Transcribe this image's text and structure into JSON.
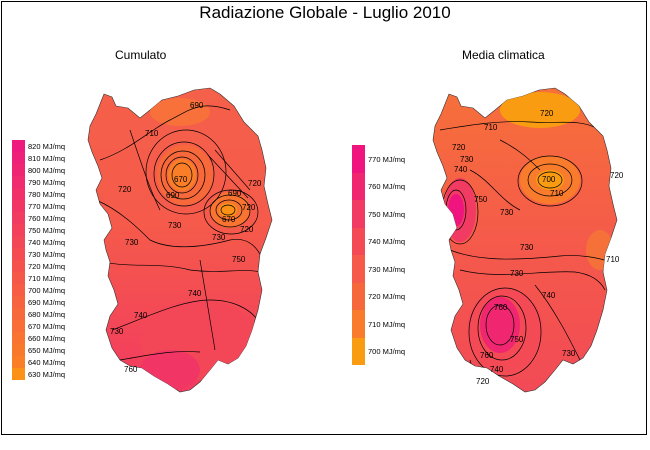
{
  "title": "Radiazione Globale - Luglio 2010",
  "maps": [
    {
      "id": "cumulato",
      "title": "Cumulato",
      "legend": [
        {
          "label": "820 MJ/mq",
          "color": "#ee1a7e"
        },
        {
          "label": "810 MJ/mq",
          "color": "#ef2079"
        },
        {
          "label": "800 MJ/mq",
          "color": "#ef2574"
        },
        {
          "label": "790 MJ/mq",
          "color": "#f02b6f"
        },
        {
          "label": "780 MJ/mq",
          "color": "#f1306a"
        },
        {
          "label": "770 MJ/mq",
          "color": "#f13666"
        },
        {
          "label": "760 MJ/mq",
          "color": "#f23b61"
        },
        {
          "label": "750 MJ/mq",
          "color": "#f3415c"
        },
        {
          "label": "740 MJ/mq",
          "color": "#f34757"
        },
        {
          "label": "730 MJ/mq",
          "color": "#f44c52"
        },
        {
          "label": "720 MJ/mq",
          "color": "#f5524e"
        },
        {
          "label": "710 MJ/mq",
          "color": "#f55749"
        },
        {
          "label": "700 MJ/mq",
          "color": "#f65d44"
        },
        {
          "label": "690 MJ/mq",
          "color": "#f7633f"
        },
        {
          "label": "680 MJ/mq",
          "color": "#f7683a"
        },
        {
          "label": "670 MJ/mq",
          "color": "#f86e36"
        },
        {
          "label": "660 MJ/mq",
          "color": "#f97331"
        },
        {
          "label": "650 MJ/mq",
          "color": "#f9792c"
        },
        {
          "label": "640 MJ/mq",
          "color": "#fa7e27"
        },
        {
          "label": "630 MJ/mq",
          "color": "#fb9116"
        }
      ],
      "contour_labels": [
        "690",
        "710",
        "720",
        "730",
        "720",
        "730",
        "740",
        "730",
        "740",
        "750",
        "760",
        "670",
        "690",
        "670",
        "730",
        "720",
        "720",
        "690"
      ]
    },
    {
      "id": "media-climatica",
      "title": "Media climatica",
      "legend": [
        {
          "label": "770 MJ/mq",
          "color": "#f0147e"
        },
        {
          "label": "760 MJ/mq",
          "color": "#f12670"
        },
        {
          "label": "750 MJ/mq",
          "color": "#f23b62"
        },
        {
          "label": "740 MJ/mq",
          "color": "#f34a56"
        },
        {
          "label": "730 MJ/mq",
          "color": "#f55a4a"
        },
        {
          "label": "720 MJ/mq",
          "color": "#f6683c"
        },
        {
          "label": "710 MJ/mq",
          "color": "#f87c2c"
        },
        {
          "label": "700 MJ/mq",
          "color": "#fa9c12"
        }
      ],
      "contour_labels": [
        "710",
        "720",
        "730",
        "740",
        "750",
        "720",
        "700",
        "710",
        "720",
        "730",
        "730",
        "710",
        "730",
        "740",
        "760",
        "750",
        "760",
        "740",
        "730",
        "720"
      ]
    }
  ]
}
